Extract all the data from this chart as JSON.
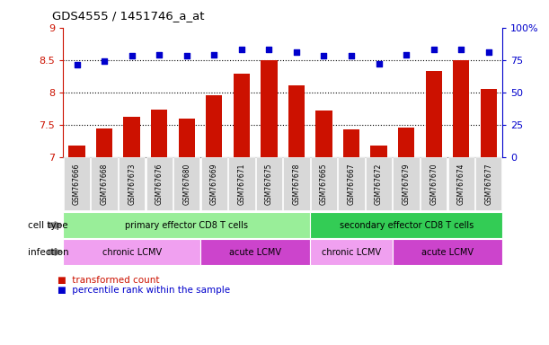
{
  "title": "GDS4555 / 1451746_a_at",
  "samples": [
    "GSM767666",
    "GSM767668",
    "GSM767673",
    "GSM767676",
    "GSM767680",
    "GSM767669",
    "GSM767671",
    "GSM767675",
    "GSM767678",
    "GSM767665",
    "GSM767667",
    "GSM767672",
    "GSM767679",
    "GSM767670",
    "GSM767674",
    "GSM767677"
  ],
  "transformed_count": [
    7.18,
    7.44,
    7.62,
    7.73,
    7.6,
    7.95,
    8.29,
    8.5,
    8.11,
    7.72,
    7.43,
    7.17,
    7.45,
    8.33,
    8.5,
    8.05
  ],
  "percentile_rank": [
    71,
    74,
    78,
    79,
    78,
    79,
    83,
    83,
    81,
    78,
    78,
    72,
    79,
    83,
    83,
    81
  ],
  "bar_color": "#cc1100",
  "dot_color": "#0000cc",
  "ylim_left": [
    7.0,
    9.0
  ],
  "ylim_right": [
    0,
    100
  ],
  "yticks_left": [
    7.0,
    7.5,
    8.0,
    8.5,
    9.0
  ],
  "yticks_right": [
    0,
    25,
    50,
    75,
    100
  ],
  "ytick_labels_left": [
    "7",
    "7.5",
    "8",
    "8.5",
    "9"
  ],
  "ytick_labels_right": [
    "0",
    "25",
    "50",
    "75",
    "100%"
  ],
  "grid_values": [
    7.5,
    8.0,
    8.5
  ],
  "cell_type_groups": [
    {
      "label": "primary effector CD8 T cells",
      "start": 0,
      "end": 9,
      "color": "#99ee99"
    },
    {
      "label": "secondary effector CD8 T cells",
      "start": 9,
      "end": 16,
      "color": "#33cc55"
    }
  ],
  "infection_groups": [
    {
      "label": "chronic LCMV",
      "start": 0,
      "end": 5,
      "color": "#f0a0f0"
    },
    {
      "label": "acute LCMV",
      "start": 5,
      "end": 9,
      "color": "#cc44cc"
    },
    {
      "label": "chronic LCMV",
      "start": 9,
      "end": 12,
      "color": "#f0a0f0"
    },
    {
      "label": "acute LCMV",
      "start": 12,
      "end": 16,
      "color": "#cc44cc"
    }
  ],
  "legend_items": [
    {
      "label": "transformed count",
      "color": "#cc1100"
    },
    {
      "label": "percentile rank within the sample",
      "color": "#0000cc"
    }
  ],
  "cell_type_label": "cell type",
  "infection_label": "infection",
  "xlim": [
    -0.5,
    15.5
  ],
  "xtick_bg_color": "#d8d8d8"
}
